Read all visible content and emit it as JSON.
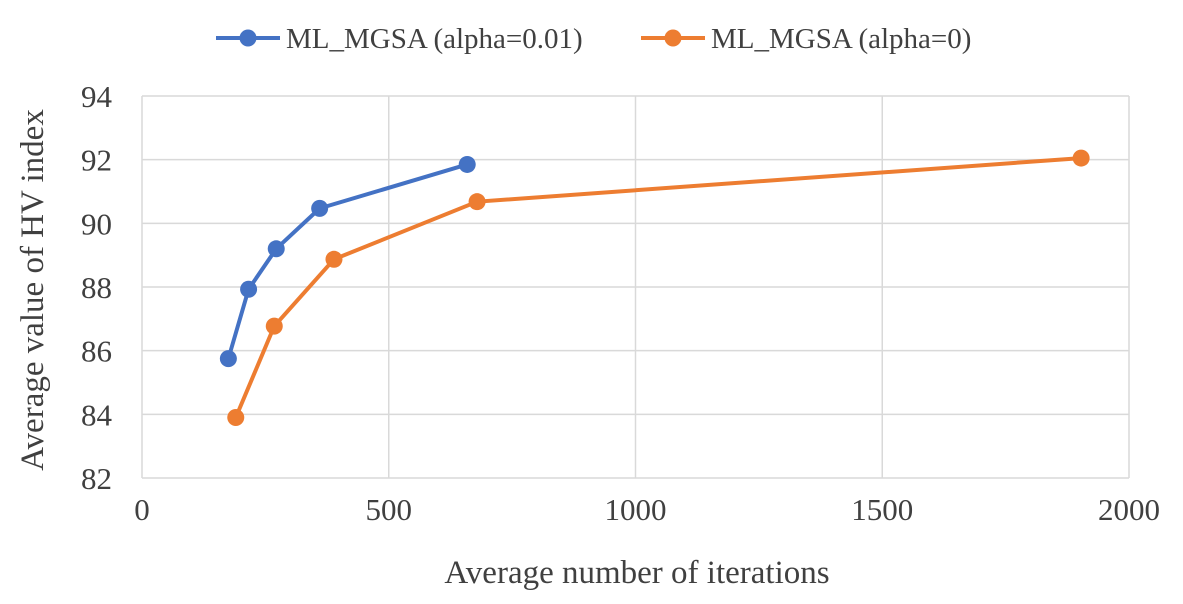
{
  "chart_data": {
    "type": "line",
    "title": "",
    "xlabel": "Average number of iterations",
    "ylabel": "Average value of HV index",
    "xlim": [
      0,
      2000
    ],
    "ylim": [
      82,
      94
    ],
    "xticks": [
      0,
      500,
      1000,
      1500,
      2000
    ],
    "yticks": [
      82,
      84,
      86,
      88,
      90,
      92,
      94
    ],
    "grid": true,
    "legend_position": "top",
    "series": [
      {
        "name": "ML_MGSA (alpha=0.01)",
        "color": "#4472C4",
        "x": [
          175,
          216,
          272,
          360,
          659
        ],
        "y": [
          85.75,
          87.93,
          89.2,
          90.47,
          91.85
        ]
      },
      {
        "name": "ML_MGSA (alpha=0)",
        "color": "#ED7D31",
        "x": [
          190,
          268,
          389,
          679,
          1903
        ],
        "y": [
          83.9,
          86.77,
          88.87,
          90.68,
          92.05
        ]
      }
    ]
  }
}
